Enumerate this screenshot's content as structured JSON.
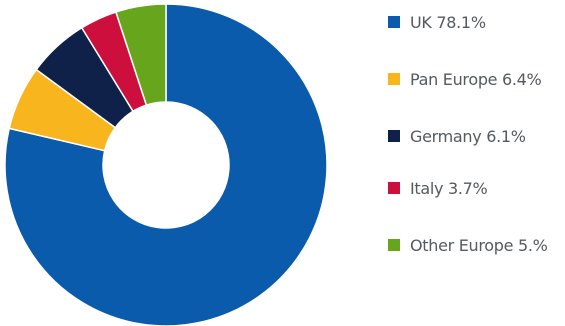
{
  "chart_data": {
    "type": "pie",
    "variant": "donut",
    "categories": [
      "UK",
      "Pan Europe",
      "Germany",
      "Italy",
      "Other Europe"
    ],
    "values": [
      78.1,
      6.4,
      6.1,
      3.7,
      5.0
    ],
    "legend_labels": [
      "UK 78.1%",
      "Pan Europe 6.4%",
      "Germany 6.1%",
      "Italy 3.7%",
      "Other Europe 5.%"
    ],
    "colors": [
      "#0a5bab",
      "#f9b51e",
      "#0f2149",
      "#cc0f3d",
      "#67a61c"
    ],
    "legend_position": "right"
  }
}
